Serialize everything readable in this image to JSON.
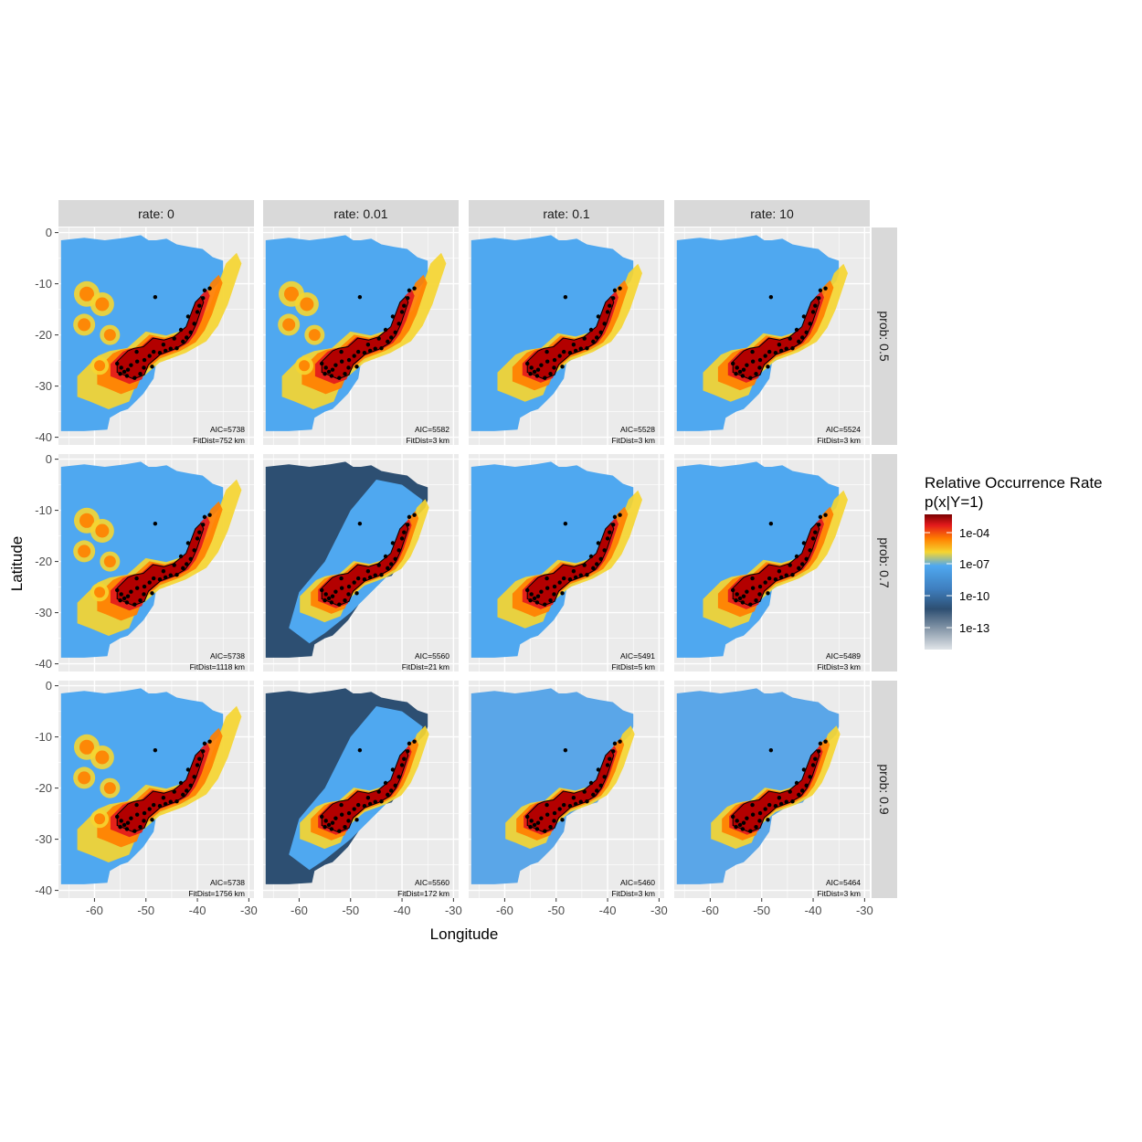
{
  "chart_data": {
    "type": "heatmap",
    "xlabel": "Longitude",
    "ylabel": "Latitude",
    "xlim": [
      -67,
      -29
    ],
    "ylim": [
      -41.5,
      1
    ],
    "x_ticks": [
      -60,
      -50,
      -40,
      -30
    ],
    "y_ticks": [
      0,
      -10,
      -20,
      -30,
      -40
    ],
    "x_tick_labels": [
      "-60",
      "-50",
      "-40",
      "-30"
    ],
    "y_tick_labels": [
      "0",
      "-10",
      "-20",
      "-30",
      "-40"
    ],
    "column_facets": [
      "rate: 0",
      "rate: 0.01",
      "rate: 0.1",
      "rate: 10"
    ],
    "row_facets": [
      "prob: 0.5",
      "prob: 0.7",
      "prob: 0.9"
    ],
    "panels": [
      [
        {
          "aic": "AIC=5738",
          "fitdist": "FitDist=752 km",
          "level": 0.15
        },
        {
          "aic": "AIC=5582",
          "fitdist": "FitDist=3 km",
          "level": 0.45
        },
        {
          "aic": "AIC=5528",
          "fitdist": "FitDist=3 km",
          "level": 0.55
        },
        {
          "aic": "AIC=5524",
          "fitdist": "FitDist=3 km",
          "level": 0.55
        }
      ],
      [
        {
          "aic": "AIC=5738",
          "fitdist": "FitDist=1118 km",
          "level": 0.15
        },
        {
          "aic": "AIC=5560",
          "fitdist": "FitDist=21 km",
          "level": 0.85
        },
        {
          "aic": "AIC=5491",
          "fitdist": "FitDist=5 km",
          "level": 0.6
        },
        {
          "aic": "AIC=5489",
          "fitdist": "FitDist=3 km",
          "level": 0.6
        }
      ],
      [
        {
          "aic": "AIC=5738",
          "fitdist": "FitDist=1756 km",
          "level": 0.15
        },
        {
          "aic": "AIC=5560",
          "fitdist": "FitDist=172 km",
          "level": 0.85
        },
        {
          "aic": "AIC=5460",
          "fitdist": "FitDist=3 km",
          "level": 0.75
        },
        {
          "aic": "AIC=5464",
          "fitdist": "FitDist=3 km",
          "level": 0.7
        }
      ]
    ],
    "occurrence_points": [
      [
        -48.2,
        -12.6
      ],
      [
        -51.8,
        -23.3
      ],
      [
        -55.6,
        -25.6
      ],
      [
        -54.8,
        -26.4
      ],
      [
        -54.2,
        -27.2
      ],
      [
        -53.5,
        -26.8
      ],
      [
        -52.9,
        -25.9
      ],
      [
        -51.7,
        -25.2
      ],
      [
        -50.3,
        -24.9
      ],
      [
        -49.3,
        -24.1
      ],
      [
        -48.5,
        -23.3
      ],
      [
        -47.3,
        -23.5
      ],
      [
        -46.2,
        -23.1
      ],
      [
        -45.2,
        -22.7
      ],
      [
        -44.0,
        -22.6
      ],
      [
        -42.8,
        -21.3
      ],
      [
        -42.1,
        -20.5
      ],
      [
        -41.3,
        -19.5
      ],
      [
        -40.6,
        -17.8
      ],
      [
        -40.0,
        -15.5
      ],
      [
        -39.6,
        -14.3
      ],
      [
        -38.9,
        -12.8
      ],
      [
        -37.6,
        -10.9
      ],
      [
        -55.0,
        -27.6
      ],
      [
        -53.7,
        -28.0
      ],
      [
        -52.2,
        -28.4
      ],
      [
        -51.1,
        -27.6
      ],
      [
        -50.4,
        -26.4
      ],
      [
        -48.8,
        -26.2
      ],
      [
        -46.6,
        -21.9
      ],
      [
        -44.5,
        -20.7
      ],
      [
        -43.2,
        -19.0
      ],
      [
        -41.8,
        -16.4
      ],
      [
        -38.6,
        -11.3
      ]
    ],
    "legend": {
      "title_line1": "Relative Occurrence Rate",
      "title_line2": "p(x|Y=1)",
      "labels": [
        "1e-04",
        "1e-07",
        "1e-10",
        "1e-13"
      ],
      "colors": [
        "#7a0000",
        "#e31a1c",
        "#ff7f00",
        "#f5d531",
        "#4fa8f0",
        "#3f7fbf",
        "#2d4f72",
        "#8899aa",
        "#e0e4e8"
      ]
    }
  }
}
